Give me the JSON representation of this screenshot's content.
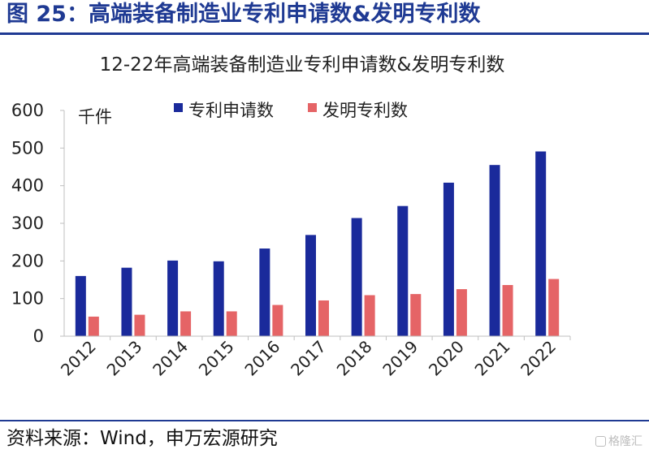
{
  "figure_title": "图 25：高端装备制造业专利申请数&发明专利数",
  "source": "资料来源：Wind，申万宏源研究",
  "watermark": "格隆汇",
  "colors": {
    "series_1": "#1a2a9b",
    "series_2": "#e56466",
    "accent": "#1f3a93"
  },
  "chart_data": {
    "type": "bar",
    "title": "12-22年高端装备制造业专利申请数&发明专利数",
    "unit": "千件",
    "categories": [
      "2012",
      "2013",
      "2014",
      "2015",
      "2016",
      "2017",
      "2018",
      "2019",
      "2020",
      "2021",
      "2022"
    ],
    "series": [
      {
        "name": "专利申请数",
        "values": [
          160,
          182,
          201,
          199,
          233,
          269,
          314,
          346,
          408,
          455,
          491
        ]
      },
      {
        "name": "发明专利数",
        "values": [
          52,
          57,
          66,
          66,
          83,
          95,
          109,
          112,
          125,
          136,
          152
        ]
      }
    ],
    "ylim": [
      0,
      600
    ],
    "yticks": [
      0,
      100,
      200,
      300,
      400,
      500,
      600
    ],
    "legend_position": "top",
    "grid": false
  }
}
